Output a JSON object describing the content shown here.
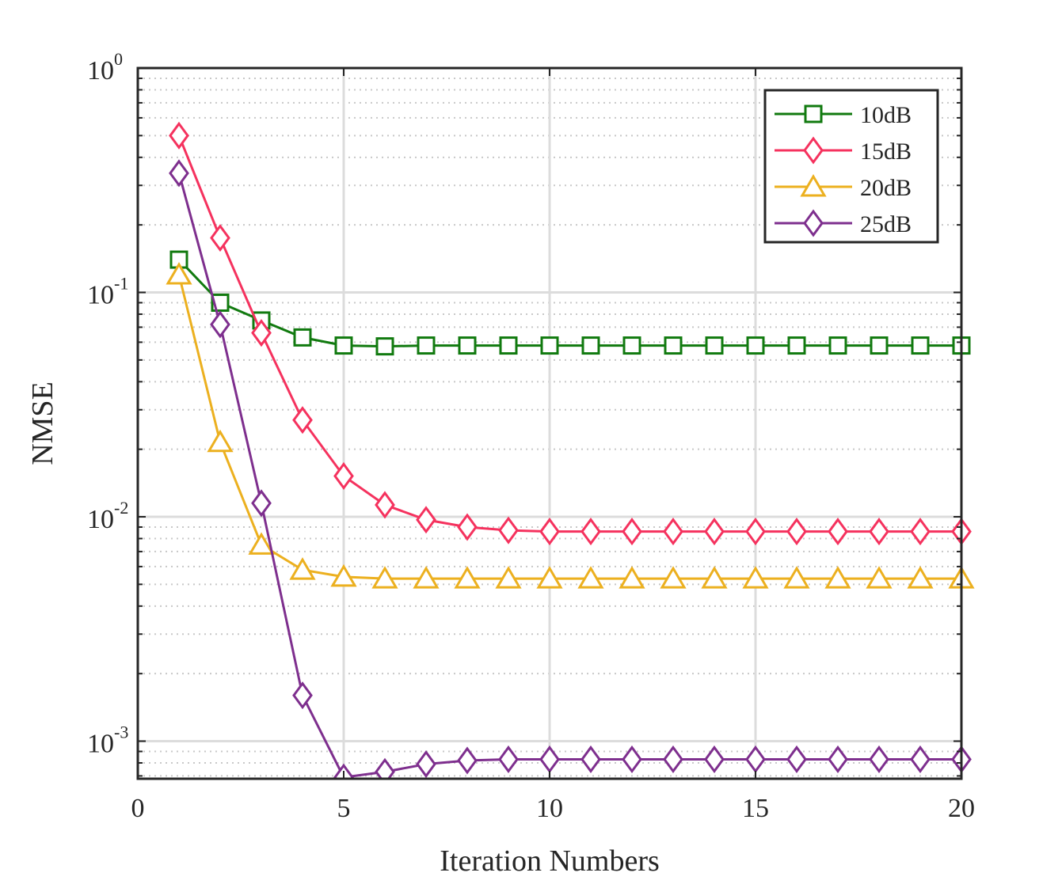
{
  "chart_data": {
    "type": "line",
    "title": "",
    "xlabel": "Iteration Numbers",
    "ylabel": "NMSE",
    "xlim": [
      0,
      20
    ],
    "ylim": [
      0.00068,
      1
    ],
    "yscale": "log",
    "grid": true,
    "x_ticks": [
      {
        "value": 0,
        "label": "0"
      },
      {
        "value": 5,
        "label": "5"
      },
      {
        "value": 10,
        "label": "10"
      },
      {
        "value": 15,
        "label": "15"
      },
      {
        "value": 20,
        "label": "20"
      }
    ],
    "y_ticks": [
      {
        "value": 1,
        "base": "10",
        "exp": "0"
      },
      {
        "value": 0.1,
        "base": "10",
        "exp": "-1"
      },
      {
        "value": 0.01,
        "base": "10",
        "exp": "-2"
      },
      {
        "value": 0.001,
        "base": "10",
        "exp": "-3"
      }
    ],
    "legend_position": "top-right",
    "x": [
      1,
      2,
      3,
      4,
      5,
      6,
      7,
      8,
      9,
      10,
      11,
      12,
      13,
      14,
      15,
      16,
      17,
      18,
      19,
      20
    ],
    "series": [
      {
        "name": "10dB",
        "color": "#117a0f",
        "marker": "square",
        "values": [
          0.14,
          0.09,
          0.075,
          0.063,
          0.058,
          0.0575,
          0.058,
          0.058,
          0.058,
          0.058,
          0.058,
          0.058,
          0.058,
          0.058,
          0.058,
          0.058,
          0.058,
          0.058,
          0.058,
          0.058
        ]
      },
      {
        "name": "15dB",
        "color": "#f5325e",
        "marker": "diamond",
        "values": [
          0.5,
          0.175,
          0.066,
          0.027,
          0.0152,
          0.0113,
          0.0097,
          0.009,
          0.0087,
          0.0086,
          0.0086,
          0.0086,
          0.0086,
          0.0086,
          0.0086,
          0.0086,
          0.0086,
          0.0086,
          0.0086,
          0.0086
        ]
      },
      {
        "name": "20dB",
        "color": "#ecb01f",
        "marker": "triangle",
        "values": [
          0.12,
          0.0215,
          0.0075,
          0.0058,
          0.0054,
          0.0053,
          0.0053,
          0.0053,
          0.0053,
          0.0053,
          0.0053,
          0.0053,
          0.0053,
          0.0053,
          0.0053,
          0.0053,
          0.0053,
          0.0053,
          0.0053,
          0.0053
        ]
      },
      {
        "name": "25dB",
        "color": "#7e2f8e",
        "marker": "diamond",
        "values": [
          0.34,
          0.072,
          0.0115,
          0.0016,
          0.00069,
          0.00073,
          0.00079,
          0.00082,
          0.00083,
          0.00083,
          0.00083,
          0.00083,
          0.00083,
          0.00083,
          0.00083,
          0.00083,
          0.00083,
          0.00083,
          0.00083,
          0.00083
        ]
      }
    ]
  }
}
